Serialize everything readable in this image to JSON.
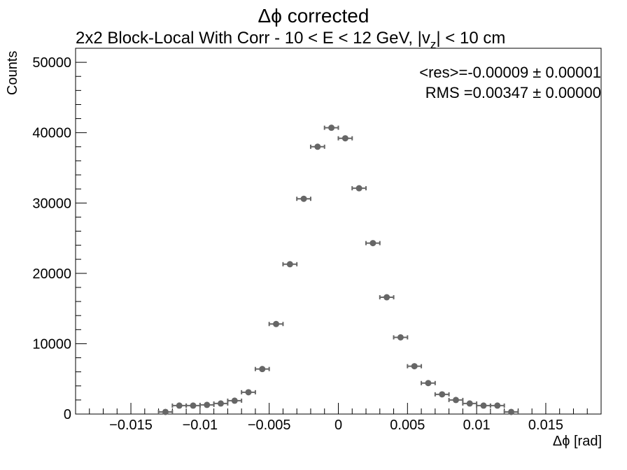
{
  "chart_data": {
    "type": "scatter",
    "title": "Δϕ corrected",
    "subtitle_main": "2x2 Block-Local With Corr   -   10 < E < 12 GeV, |v",
    "subtitle_sub": "z",
    "subtitle_tail": "| < 10 cm",
    "xlabel": "Δϕ  [rad]",
    "ylabel": "Counts",
    "xlim": [
      -0.019,
      0.019
    ],
    "ylim": [
      0,
      52000
    ],
    "xticks": [
      -0.015,
      -0.01,
      -0.005,
      0,
      0.005,
      0.01,
      0.015
    ],
    "xtick_labels": [
      "−0.015",
      "−0.01",
      "−0.005",
      "0",
      "0.005",
      "0.01",
      "0.015"
    ],
    "yticks": [
      0,
      10000,
      20000,
      30000,
      40000,
      50000
    ],
    "ytick_labels": [
      "0",
      "10000",
      "20000",
      "30000",
      "40000",
      "50000"
    ],
    "bin_halfwidth": 0.0005,
    "stats": {
      "res_line": "<res>=-0.00009 ± 0.00001",
      "rms_line": "RMS =0.00347 ± 0.00000"
    },
    "marker_color": "#666666",
    "points": [
      {
        "x": -0.0125,
        "y": 300
      },
      {
        "x": -0.0115,
        "y": 1200
      },
      {
        "x": -0.0105,
        "y": 1200
      },
      {
        "x": -0.0095,
        "y": 1300
      },
      {
        "x": -0.0085,
        "y": 1500
      },
      {
        "x": -0.0075,
        "y": 1900
      },
      {
        "x": -0.0065,
        "y": 3100
      },
      {
        "x": -0.0055,
        "y": 6400
      },
      {
        "x": -0.0045,
        "y": 12800
      },
      {
        "x": -0.0035,
        "y": 21300
      },
      {
        "x": -0.0025,
        "y": 30600
      },
      {
        "x": -0.0015,
        "y": 38000
      },
      {
        "x": -0.0005,
        "y": 40700
      },
      {
        "x": 0.0005,
        "y": 39200
      },
      {
        "x": 0.0015,
        "y": 32100
      },
      {
        "x": 0.0025,
        "y": 24300
      },
      {
        "x": 0.0035,
        "y": 16600
      },
      {
        "x": 0.0045,
        "y": 10900
      },
      {
        "x": 0.0055,
        "y": 6800
      },
      {
        "x": 0.0065,
        "y": 4400
      },
      {
        "x": 0.0075,
        "y": 2800
      },
      {
        "x": 0.0085,
        "y": 2000
      },
      {
        "x": 0.0095,
        "y": 1500
      },
      {
        "x": 0.0105,
        "y": 1200
      },
      {
        "x": 0.0115,
        "y": 1200
      },
      {
        "x": 0.0125,
        "y": 300
      }
    ]
  }
}
